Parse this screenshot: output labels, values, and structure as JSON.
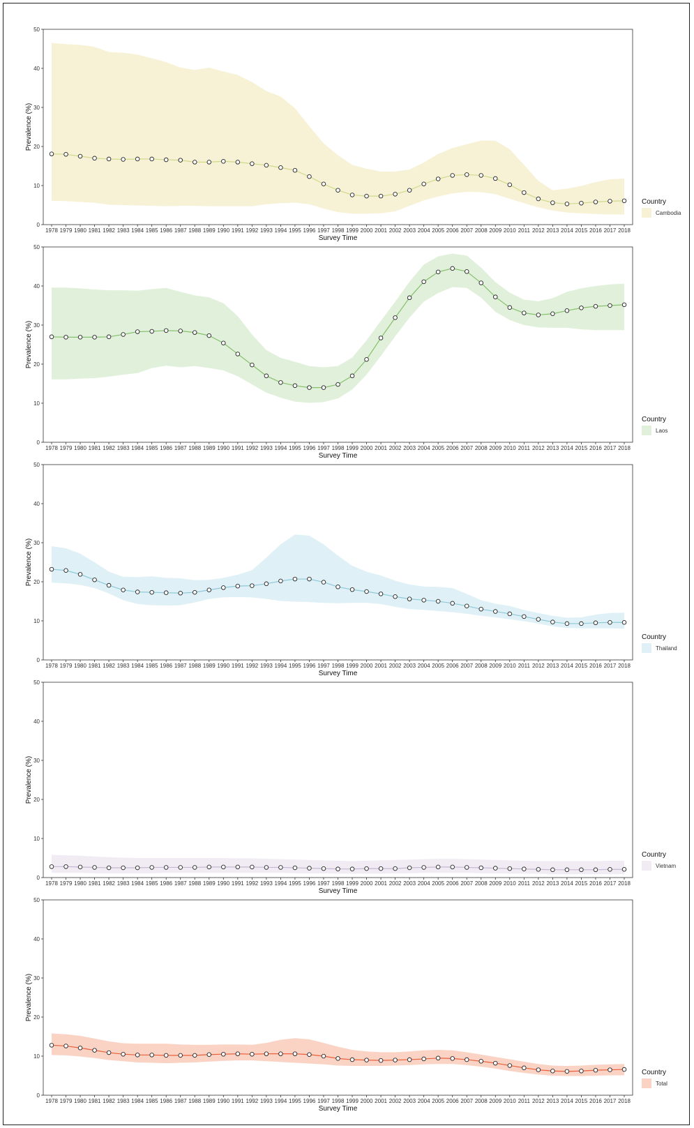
{
  "chart_data": [
    {
      "type": "line",
      "xlabel": "Survey Time",
      "ylabel": "Prevalence (%)",
      "ylim": [
        0,
        50
      ],
      "yticks": [
        0,
        10,
        20,
        30,
        40,
        50
      ],
      "legend_title": "Country",
      "legend_position": "right-bottom",
      "series": [
        {
          "name": "Cambodia",
          "line_color": "#cfd98a",
          "band_color": "#f7f2d6",
          "x": [
            1978,
            1979,
            1980,
            1981,
            1982,
            1983,
            1984,
            1985,
            1986,
            1987,
            1988,
            1989,
            1990,
            1991,
            1992,
            1993,
            1994,
            1995,
            1996,
            1997,
            1998,
            1999,
            2000,
            2001,
            2002,
            2003,
            2004,
            2005,
            2006,
            2007,
            2008,
            2009,
            2010,
            2011,
            2012,
            2013,
            2014,
            2015,
            2016,
            2017,
            2018
          ],
          "values": [
            18.1,
            18.0,
            17.5,
            17.0,
            16.8,
            16.7,
            16.8,
            16.8,
            16.6,
            16.5,
            16.0,
            16.0,
            16.2,
            16.0,
            15.6,
            15.2,
            14.6,
            13.9,
            12.3,
            10.4,
            8.8,
            7.6,
            7.3,
            7.3,
            7.8,
            8.8,
            10.4,
            11.7,
            12.6,
            12.8,
            12.6,
            11.8,
            10.2,
            8.2,
            6.6,
            5.6,
            5.3,
            5.5,
            5.8,
            6.0,
            6.1
          ],
          "lower": [
            6.1,
            6.0,
            5.8,
            5.6,
            5.1,
            5.0,
            4.9,
            4.8,
            4.7,
            4.8,
            4.8,
            4.7,
            4.7,
            4.7,
            4.7,
            5.2,
            5.5,
            5.6,
            5.2,
            4.1,
            3.2,
            2.8,
            2.8,
            2.9,
            3.4,
            4.8,
            6.2,
            7.2,
            8.0,
            8.4,
            8.3,
            7.8,
            6.6,
            5.5,
            4.4,
            3.6,
            3.1,
            2.9,
            2.7,
            2.6,
            2.6
          ],
          "upper": [
            46.5,
            46.2,
            46.0,
            45.5,
            44.2,
            44.0,
            43.5,
            42.6,
            41.6,
            40.2,
            39.6,
            40.2,
            39.2,
            38.3,
            36.5,
            34.2,
            32.8,
            29.8,
            25.2,
            20.8,
            17.8,
            15.3,
            14.3,
            13.6,
            13.6,
            14.1,
            15.9,
            18.1,
            19.6,
            20.6,
            21.5,
            21.5,
            19.3,
            15.3,
            11.2,
            8.8,
            9.2,
            9.9,
            10.9,
            11.6,
            11.8
          ]
        }
      ]
    },
    {
      "type": "line",
      "xlabel": "Survey Time",
      "ylabel": "Prevalence (%)",
      "ylim": [
        0,
        50
      ],
      "yticks": [
        0,
        10,
        20,
        30,
        40,
        50
      ],
      "legend_title": "Country",
      "legend_position": "right-bottom",
      "series": [
        {
          "name": "Laos",
          "line_color": "#86c06c",
          "band_color": "#e1f0db",
          "x": [
            1978,
            1979,
            1980,
            1981,
            1982,
            1983,
            1984,
            1985,
            1986,
            1987,
            1988,
            1989,
            1990,
            1991,
            1992,
            1993,
            1994,
            1995,
            1996,
            1997,
            1998,
            1999,
            2000,
            2001,
            2002,
            2003,
            2004,
            2005,
            2006,
            2007,
            2008,
            2009,
            2010,
            2011,
            2012,
            2013,
            2014,
            2015,
            2016,
            2017,
            2018
          ],
          "values": [
            27.0,
            26.9,
            26.9,
            26.9,
            27.0,
            27.6,
            28.3,
            28.4,
            28.6,
            28.5,
            28.1,
            27.3,
            25.4,
            22.6,
            19.8,
            17.0,
            15.3,
            14.5,
            14.0,
            14.0,
            14.8,
            17.0,
            21.2,
            26.7,
            31.9,
            37.0,
            41.1,
            43.6,
            44.5,
            43.7,
            40.8,
            37.2,
            34.5,
            33.1,
            32.6,
            32.9,
            33.7,
            34.4,
            34.8,
            35.0,
            35.2
          ],
          "lower": [
            16.1,
            16.1,
            16.3,
            16.4,
            16.8,
            17.3,
            17.7,
            19.0,
            19.6,
            19.2,
            19.5,
            19.0,
            18.4,
            16.9,
            14.8,
            12.7,
            11.4,
            10.4,
            10.1,
            10.3,
            11.2,
            13.5,
            17.3,
            22.1,
            27.1,
            31.9,
            36.0,
            38.2,
            39.7,
            39.5,
            37.0,
            33.4,
            31.3,
            30.0,
            29.4,
            29.3,
            29.3,
            28.9,
            28.7,
            28.7,
            28.7
          ],
          "upper": [
            39.6,
            39.6,
            39.4,
            39.1,
            38.9,
            38.9,
            38.8,
            39.2,
            39.5,
            38.5,
            37.6,
            37.1,
            35.6,
            32.3,
            27.6,
            23.6,
            21.6,
            20.6,
            19.5,
            19.2,
            19.5,
            21.7,
            26.1,
            31.1,
            36.0,
            41.1,
            45.5,
            47.6,
            48.3,
            47.8,
            44.7,
            41.0,
            38.3,
            36.5,
            36.1,
            36.9,
            38.5,
            39.4,
            40.0,
            40.4,
            40.6
          ]
        }
      ]
    },
    {
      "type": "line",
      "xlabel": "Survey Time",
      "ylabel": "Prevalence (%)",
      "ylim": [
        0,
        50
      ],
      "yticks": [
        0,
        10,
        20,
        30,
        40,
        50
      ],
      "legend_title": "Country",
      "legend_position": "right-bottom",
      "series": [
        {
          "name": "Thailand",
          "line_color": "#8ec8d8",
          "band_color": "#dff1f6",
          "x": [
            1978,
            1979,
            1980,
            1981,
            1982,
            1983,
            1984,
            1985,
            1986,
            1987,
            1988,
            1989,
            1990,
            1991,
            1992,
            1993,
            1994,
            1995,
            1996,
            1997,
            1998,
            1999,
            2000,
            2001,
            2002,
            2003,
            2004,
            2005,
            2006,
            2007,
            2008,
            2009,
            2010,
            2011,
            2012,
            2013,
            2014,
            2015,
            2016,
            2017,
            2018
          ],
          "values": [
            23.2,
            22.9,
            21.9,
            20.5,
            19.1,
            17.9,
            17.4,
            17.3,
            17.2,
            17.1,
            17.3,
            17.9,
            18.5,
            18.9,
            19.0,
            19.5,
            20.2,
            20.7,
            20.7,
            19.9,
            18.7,
            18.0,
            17.5,
            16.9,
            16.2,
            15.6,
            15.3,
            15.0,
            14.5,
            13.8,
            13.0,
            12.4,
            11.8,
            11.1,
            10.4,
            9.7,
            9.3,
            9.3,
            9.5,
            9.6,
            9.6
          ],
          "lower": [
            19.8,
            19.6,
            19.2,
            18.4,
            17.0,
            15.3,
            14.3,
            14.0,
            13.9,
            14.0,
            14.7,
            15.6,
            16.0,
            16.1,
            16.0,
            15.6,
            15.1,
            14.9,
            14.8,
            14.6,
            14.5,
            14.6,
            14.6,
            14.3,
            13.6,
            13.0,
            12.8,
            12.5,
            12.2,
            11.8,
            11.3,
            10.9,
            10.4,
            9.9,
            9.3,
            8.6,
            8.2,
            8.1,
            8.1,
            8.1,
            8.0
          ],
          "upper": [
            29.1,
            28.6,
            27.2,
            25.0,
            22.6,
            21.3,
            21.2,
            21.4,
            21.0,
            20.9,
            20.4,
            20.5,
            21.0,
            21.8,
            23.0,
            26.2,
            29.6,
            32.1,
            31.8,
            29.6,
            26.7,
            24.1,
            22.6,
            21.6,
            20.3,
            19.3,
            18.8,
            18.7,
            18.4,
            16.9,
            15.3,
            14.4,
            13.8,
            12.8,
            12.0,
            11.3,
            10.8,
            10.9,
            11.6,
            12.0,
            12.1
          ]
        }
      ]
    },
    {
      "type": "line",
      "xlabel": "Survey Time",
      "ylabel": "Prevalence (%)",
      "ylim": [
        0,
        50
      ],
      "yticks": [
        0,
        10,
        20,
        30,
        40,
        50
      ],
      "legend_title": "Country",
      "legend_position": "right-bottom",
      "series": [
        {
          "name": "Vietnam",
          "line_color": "#c6b7d2",
          "band_color": "#f1ebf4",
          "x": [
            1978,
            1979,
            1980,
            1981,
            1982,
            1983,
            1984,
            1985,
            1986,
            1987,
            1988,
            1989,
            1990,
            1991,
            1992,
            1993,
            1994,
            1995,
            1996,
            1997,
            1998,
            1999,
            2000,
            2001,
            2002,
            2003,
            2004,
            2005,
            2006,
            2007,
            2008,
            2009,
            2010,
            2011,
            2012,
            2013,
            2014,
            2015,
            2016,
            2017,
            2018
          ],
          "values": [
            2.8,
            2.8,
            2.7,
            2.6,
            2.5,
            2.5,
            2.5,
            2.6,
            2.6,
            2.6,
            2.6,
            2.7,
            2.7,
            2.7,
            2.7,
            2.6,
            2.6,
            2.5,
            2.4,
            2.3,
            2.2,
            2.2,
            2.3,
            2.3,
            2.3,
            2.5,
            2.6,
            2.7,
            2.7,
            2.6,
            2.5,
            2.4,
            2.3,
            2.2,
            2.1,
            2.0,
            2.0,
            2.0,
            2.0,
            2.1,
            2.1
          ],
          "lower": [
            1.2,
            1.2,
            1.2,
            1.1,
            1.1,
            1.1,
            1.1,
            1.1,
            1.2,
            1.2,
            1.2,
            1.2,
            1.2,
            1.2,
            1.2,
            1.2,
            1.2,
            1.1,
            1.1,
            1.1,
            1.0,
            1.0,
            1.0,
            1.0,
            1.1,
            1.1,
            1.2,
            1.2,
            1.2,
            1.2,
            1.1,
            1.1,
            1.0,
            1.0,
            1.0,
            0.9,
            0.9,
            0.9,
            0.9,
            0.9,
            0.9
          ],
          "upper": [
            5.8,
            5.7,
            5.6,
            5.4,
            5.2,
            5.1,
            5.0,
            5.0,
            5.0,
            5.0,
            5.0,
            5.0,
            5.0,
            4.9,
            4.9,
            4.8,
            4.7,
            4.6,
            4.5,
            4.4,
            4.3,
            4.2,
            4.3,
            4.4,
            4.5,
            4.6,
            4.7,
            4.8,
            4.8,
            4.7,
            4.6,
            4.5,
            4.4,
            4.3,
            4.2,
            4.2,
            4.2,
            4.2,
            4.2,
            4.3,
            4.3
          ]
        }
      ]
    },
    {
      "type": "line",
      "xlabel": "Survey Time",
      "ylabel": "Prevalence (%)",
      "ylim": [
        0,
        50
      ],
      "yticks": [
        0,
        10,
        20,
        30,
        40,
        50
      ],
      "legend_title": "Country",
      "legend_position": "right-bottom",
      "series": [
        {
          "name": "Total",
          "line_color": "#e8613c",
          "band_color": "#fbd3c4",
          "x": [
            1978,
            1979,
            1980,
            1981,
            1982,
            1983,
            1984,
            1985,
            1986,
            1987,
            1988,
            1989,
            1990,
            1991,
            1992,
            1993,
            1994,
            1995,
            1996,
            1997,
            1998,
            1999,
            2000,
            2001,
            2002,
            2003,
            2004,
            2005,
            2006,
            2007,
            2008,
            2009,
            2010,
            2011,
            2012,
            2013,
            2014,
            2015,
            2016,
            2017,
            2018
          ],
          "values": [
            12.8,
            12.6,
            12.1,
            11.5,
            10.9,
            10.5,
            10.3,
            10.3,
            10.2,
            10.2,
            10.2,
            10.4,
            10.5,
            10.6,
            10.5,
            10.6,
            10.6,
            10.6,
            10.4,
            10.0,
            9.4,
            9.1,
            9.0,
            8.9,
            9.0,
            9.1,
            9.3,
            9.5,
            9.4,
            9.1,
            8.7,
            8.2,
            7.6,
            7.0,
            6.5,
            6.2,
            6.1,
            6.2,
            6.4,
            6.5,
            6.6
          ],
          "lower": [
            10.3,
            10.2,
            9.9,
            9.5,
            9.0,
            8.7,
            8.4,
            8.3,
            8.2,
            8.3,
            8.4,
            8.6,
            8.8,
            8.9,
            8.9,
            8.7,
            8.5,
            8.3,
            8.1,
            7.9,
            7.6,
            7.5,
            7.5,
            7.5,
            7.6,
            7.7,
            7.9,
            8.0,
            8.0,
            7.7,
            7.3,
            6.8,
            6.2,
            5.7,
            5.3,
            5.0,
            4.9,
            4.9,
            5.0,
            5.1,
            5.1
          ],
          "upper": [
            15.8,
            15.6,
            15.2,
            14.5,
            13.8,
            13.3,
            13.2,
            13.2,
            13.2,
            13.0,
            12.9,
            12.9,
            13.0,
            13.0,
            12.9,
            13.4,
            14.2,
            14.6,
            14.3,
            13.4,
            12.4,
            11.6,
            11.2,
            11.0,
            11.0,
            11.2,
            11.5,
            11.6,
            11.5,
            11.0,
            10.4,
            9.8,
            9.2,
            8.6,
            8.0,
            7.6,
            7.5,
            7.6,
            7.8,
            7.9,
            8.0
          ]
        }
      ]
    }
  ]
}
